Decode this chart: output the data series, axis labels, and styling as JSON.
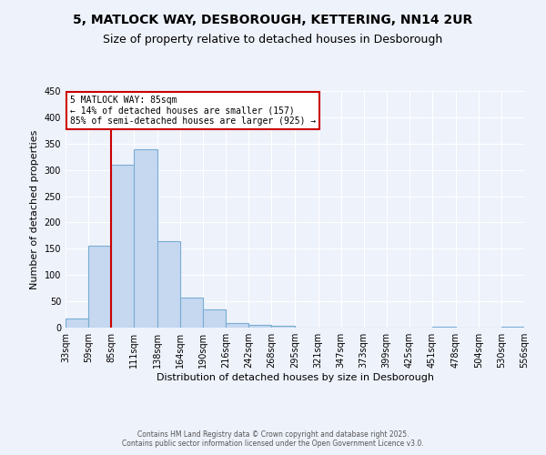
{
  "title": "5, MATLOCK WAY, DESBOROUGH, KETTERING, NN14 2UR",
  "subtitle": "Size of property relative to detached houses in Desborough",
  "xlabel": "Distribution of detached houses by size in Desborough",
  "ylabel": "Number of detached properties",
  "bin_edges": [
    33,
    59,
    85,
    111,
    138,
    164,
    190,
    216,
    242,
    268,
    295,
    321,
    347,
    373,
    399,
    425,
    451,
    478,
    504,
    530,
    556
  ],
  "bar_heights": [
    17,
    155,
    310,
    340,
    165,
    57,
    35,
    9,
    6,
    3,
    0,
    0,
    0,
    0,
    0,
    0,
    2,
    0,
    0,
    2
  ],
  "bar_color": "#c5d8f0",
  "bar_edgecolor": "#7aadd4",
  "reference_line_x": 85,
  "ylim": [
    0,
    450
  ],
  "annotation_title": "5 MATLOCK WAY: 85sqm",
  "annotation_line1": "← 14% of detached houses are smaller (157)",
  "annotation_line2": "85% of semi-detached houses are larger (925) →",
  "annotation_box_facecolor": "#ffffff",
  "annotation_box_edgecolor": "#cc0000",
  "reference_line_color": "#cc0000",
  "tick_labels": [
    "33sqm",
    "59sqm",
    "85sqm",
    "111sqm",
    "138sqm",
    "164sqm",
    "190sqm",
    "216sqm",
    "242sqm",
    "268sqm",
    "295sqm",
    "321sqm",
    "347sqm",
    "373sqm",
    "399sqm",
    "425sqm",
    "451sqm",
    "478sqm",
    "504sqm",
    "530sqm",
    "556sqm"
  ],
  "footer_line1": "Contains HM Land Registry data © Crown copyright and database right 2025.",
  "footer_line2": "Contains public sector information licensed under the Open Government Licence v3.0.",
  "background_color": "#eef2fb",
  "yticks": [
    0,
    50,
    100,
    150,
    200,
    250,
    300,
    350,
    400,
    450
  ],
  "title_fontsize": 10,
  "subtitle_fontsize": 9,
  "ylabel_fontsize": 8,
  "xlabel_fontsize": 8,
  "tick_fontsize": 7,
  "annotation_fontsize": 7,
  "footer_fontsize": 5.5
}
